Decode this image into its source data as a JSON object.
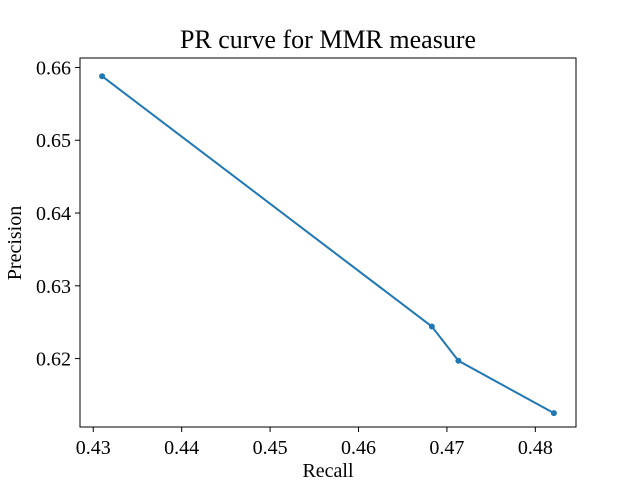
{
  "chart_data": {
    "type": "line",
    "title": "PR curve for MMR measure",
    "xlabel": "Recall",
    "ylabel": "Precision",
    "xlim": [
      0.4285,
      0.4846
    ],
    "ylim": [
      0.6106,
      0.6613
    ],
    "xticks": [
      0.43,
      0.44,
      0.45,
      0.46,
      0.47,
      0.48
    ],
    "xtick_labels": [
      "0.43",
      "0.44",
      "0.45",
      "0.46",
      "0.47",
      "0.48"
    ],
    "yticks": [
      0.62,
      0.63,
      0.64,
      0.65,
      0.66
    ],
    "ytick_labels": [
      "0.62",
      "0.63",
      "0.64",
      "0.65",
      "0.66"
    ],
    "grid": false,
    "series": [
      {
        "color": "#1f77b4",
        "marker": "circle",
        "x": [
          0.431,
          0.4683,
          0.4713,
          0.4821
        ],
        "y": [
          0.6588,
          0.6244,
          0.6197,
          0.6125
        ]
      }
    ]
  }
}
